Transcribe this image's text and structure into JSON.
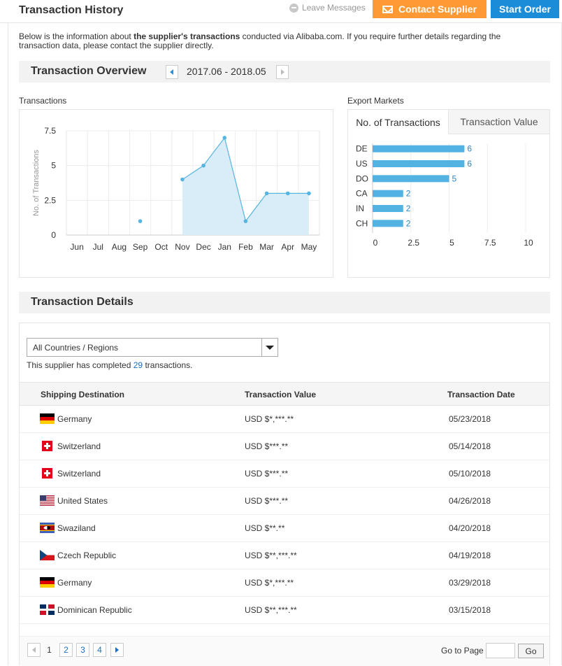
{
  "header": {
    "title": "Transaction History",
    "leave_messages": "Leave Messages",
    "contact_supplier": "Contact Supplier",
    "start_order": "Start Order"
  },
  "intro": {
    "prefix": "Below is the information about ",
    "bold": "the supplier's transactions",
    "suffix": " conducted via Alibaba.com. If you require further details regarding the transaction data, please contact the supplier directly."
  },
  "overview": {
    "title": "Transaction Overview",
    "period": "2017.06 - 2018.05",
    "transactions_label": "Transactions",
    "export_label": "Export Markets",
    "tab_count": "No. of Transactions",
    "tab_value": "Transaction Value"
  },
  "chart_data": [
    {
      "type": "line",
      "title": "",
      "ylabel": "No. of Transactions",
      "xlabel": "",
      "categories": [
        "Jun",
        "Jul",
        "Aug",
        "Sep",
        "Oct",
        "Nov",
        "Dec",
        "Jan",
        "Feb",
        "Mar",
        "Apr",
        "May"
      ],
      "values": [
        null,
        null,
        null,
        1,
        null,
        4,
        5,
        7,
        1,
        3,
        3,
        3
      ],
      "yticks": [
        "0",
        "2.5",
        "5",
        "7.5"
      ],
      "ylim": [
        0,
        7.5
      ],
      "grid": true,
      "color": "#56b4e0",
      "area_color": "#d9edf8"
    },
    {
      "type": "bar",
      "orientation": "horizontal",
      "categories": [
        "DE",
        "US",
        "DO",
        "CA",
        "IN",
        "CH"
      ],
      "values": [
        6,
        6,
        5,
        2,
        2,
        2
      ],
      "xticks": [
        "0",
        "2.5",
        "5",
        "7.5",
        "10"
      ],
      "xlim": [
        0,
        10
      ],
      "grid": true,
      "color": "#52b3e3",
      "label_color": "#2b86c9"
    }
  ],
  "details": {
    "title": "Transaction Details",
    "filter_value": "All Countries / Regions",
    "completed_prefix": "This supplier has completed ",
    "completed_count": "29",
    "completed_suffix": " transactions.",
    "columns": [
      "Shipping Destination",
      "Transaction Value",
      "Transaction Date"
    ],
    "rows": [
      {
        "flag": "germany-flag-icon",
        "country": "Germany",
        "value": "USD $*,***.**",
        "date": "05/23/2018"
      },
      {
        "flag": "switzerland-flag-icon",
        "country": "Switzerland",
        "value": "USD $***.**",
        "date": "05/14/2018"
      },
      {
        "flag": "switzerland-flag-icon",
        "country": "Switzerland",
        "value": "USD $***.**",
        "date": "05/10/2018"
      },
      {
        "flag": "united-states-flag-icon",
        "country": "United States",
        "value": "USD $***.**",
        "date": "04/26/2018"
      },
      {
        "flag": "swaziland-flag-icon",
        "country": "Swaziland",
        "value": "USD $**.**",
        "date": "04/20/2018"
      },
      {
        "flag": "czech-republic-flag-icon",
        "country": "Czech Republic",
        "value": "USD $**,***.**",
        "date": "04/19/2018"
      },
      {
        "flag": "germany-flag-icon",
        "country": "Germany",
        "value": "USD $*,***.**",
        "date": "03/29/2018"
      },
      {
        "flag": "dominican-republic-flag-icon",
        "country": "Dominican Republic",
        "value": "USD $**,***.**",
        "date": "03/15/2018"
      }
    ]
  },
  "pager": {
    "pages": [
      "1",
      "2",
      "3",
      "4"
    ],
    "current": "1",
    "goto_label": "Go to Page",
    "go_button": "Go"
  }
}
